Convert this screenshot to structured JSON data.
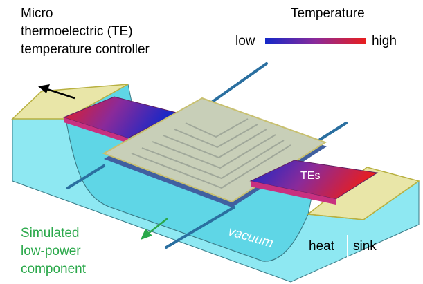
{
  "header": {
    "lines": [
      "Micro",
      "thermoelectric (TE)",
      "temperature controller"
    ]
  },
  "legend": {
    "title": "Temperature",
    "low": "low",
    "high": "high"
  },
  "labels": {
    "tes": "TEs",
    "vacuum": "vacuum",
    "heat": "heat",
    "sink": "sink"
  },
  "component": {
    "lines": [
      "Simulated",
      "low-power",
      "component"
    ]
  }
}
